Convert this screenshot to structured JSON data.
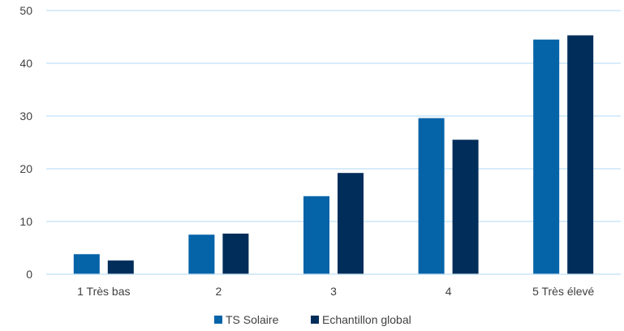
{
  "chart_data": {
    "type": "bar",
    "categories": [
      "1 Très bas",
      "2",
      "3",
      "4",
      "5 Très élevé"
    ],
    "series": [
      {
        "name": "TS Solaire",
        "values": [
          3.8,
          7.5,
          14.8,
          29.6,
          44.5
        ],
        "color": "#0563a8"
      },
      {
        "name": "Echantillon global",
        "values": [
          2.6,
          7.7,
          19.2,
          25.5,
          45.3
        ],
        "color": "#002d5a"
      }
    ],
    "title": "",
    "xlabel": "",
    "ylabel": "",
    "ylim": [
      0,
      50
    ],
    "yticks": [
      0,
      10,
      20,
      30,
      40,
      50
    ],
    "grid": true,
    "legend_position": "bottom",
    "gridline_color": "#bfe0f5"
  }
}
